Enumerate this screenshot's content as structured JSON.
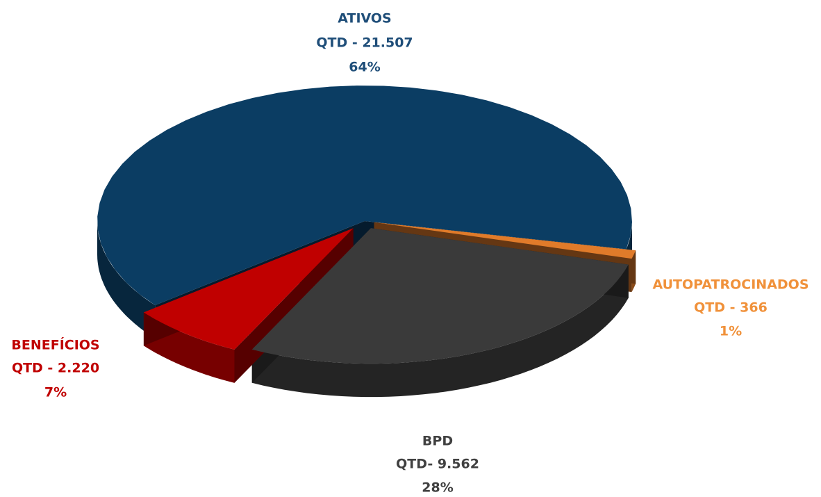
{
  "chart_data": {
    "type": "pie",
    "categories": [
      "ATIVOS",
      "AUTOPATROCINADOS",
      "BPD",
      "BENEFÍCIOS"
    ],
    "values": [
      64,
      1,
      28,
      7
    ],
    "value_labels": [
      "64%",
      "1%",
      "28%",
      "7%"
    ],
    "quantities": [
      21507,
      366,
      9562,
      2220
    ],
    "quantity_labels": [
      "QTD - 21.507",
      "QTD - 366",
      "QTD- 9.562",
      "QTD - 2.220"
    ],
    "colors": [
      "#0b3d63",
      "#e07b2a",
      "#3a3a3a",
      "#c00000"
    ],
    "label_colors": [
      "#1f4e79",
      "#f0913a",
      "#404040",
      "#c00000"
    ]
  }
}
